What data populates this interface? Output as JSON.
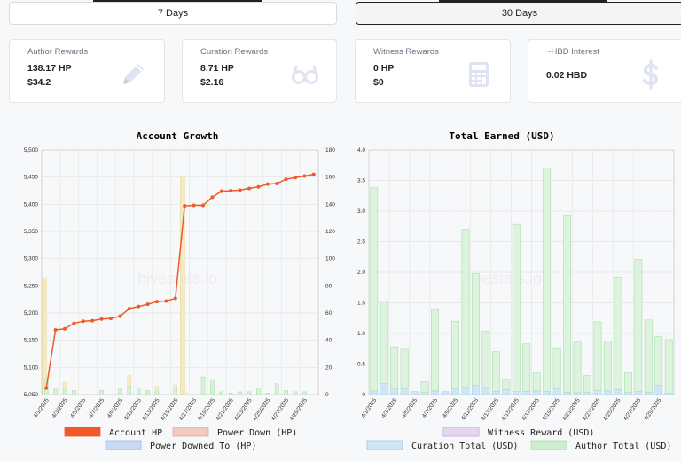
{
  "tabs": [
    {
      "label": "7 Days"
    },
    {
      "label": "30 Days"
    }
  ],
  "cards": [
    {
      "label": "Author Rewards",
      "value1": "138.17 HP",
      "value2": "$34.2",
      "icon": "pencil-icon"
    },
    {
      "label": "Curation Rewards",
      "value1": "8.71 HP",
      "value2": "$2.16",
      "icon": "glasses-icon"
    },
    {
      "label": "Witness Rewards",
      "value1": "0 HP",
      "value2": "$0",
      "icon": "calculator-icon"
    },
    {
      "label": "~HBD Interest",
      "value1": "0.02 HBD",
      "value2": "",
      "icon": "dollar-icon"
    }
  ],
  "watermark": "hivestats.io",
  "colors": {
    "account_hp": "#f05a28",
    "power_down": "#f3c9c0",
    "power_downed_to": "#c9d8f5",
    "witness": "#e6d6ee",
    "curation": "#cfe6f5",
    "author": "#cdeecf",
    "card_icon": "#dfe3f2"
  },
  "chart_data": [
    {
      "type": "bar",
      "title": "Account Growth",
      "categories": [
        "4/1/2025",
        "4/2/2025",
        "4/3/2025",
        "4/4/2025",
        "4/5/2025",
        "4/6/2025",
        "4/7/2025",
        "4/8/2025",
        "4/9/2025",
        "4/10/2025",
        "4/11/2025",
        "4/12/2025",
        "4/13/2025",
        "4/14/2025",
        "4/15/2025",
        "4/16/2025",
        "4/17/2025",
        "4/18/2025",
        "4/19/2025",
        "4/20/2025",
        "4/21/2025",
        "4/22/2025",
        "4/23/2025",
        "4/24/2025",
        "4/25/2025",
        "4/26/2025",
        "4/27/2025",
        "4/28/2025",
        "4/29/2025",
        "4/30/2025"
      ],
      "xtick_labels": [
        "4/1/2025",
        "4/3/2025",
        "4/5/2025",
        "4/7/2025",
        "4/9/2025",
        "4/11/2025",
        "4/13/2025",
        "4/15/2025",
        "4/17/2025",
        "4/19/2025",
        "4/21/2025",
        "4/23/2025",
        "4/25/2025",
        "4/27/2025",
        "4/29/2025"
      ],
      "y_left": {
        "min": 5050,
        "max": 5500,
        "ticks": [
          "5,050",
          "5,100",
          "5,150",
          "5,200",
          "5,250",
          "5,300",
          "5,350",
          "5,400",
          "5,450",
          "5,500"
        ]
      },
      "y_right": {
        "min": 0,
        "max": 180,
        "ticks": [
          "0",
          "20",
          "40",
          "60",
          "80",
          "100",
          "120",
          "140",
          "160",
          "180"
        ]
      },
      "series": [
        {
          "name": "Account HP",
          "kind": "line",
          "axis": "left",
          "values": [
            5062,
            5169,
            5171,
            5181,
            5185,
            5186,
            5189,
            5190,
            5194,
            5208,
            5212,
            5216,
            5221,
            5222,
            5227,
            5397,
            5398,
            5398,
            5413,
            5424,
            5425,
            5426,
            5429,
            5432,
            5437,
            5438,
            5446,
            5449,
            5452,
            5455
          ]
        },
        {
          "name": "Power Down (HP)",
          "kind": "bar",
          "axis": "right",
          "values": [
            86,
            0,
            0,
            0,
            0,
            0,
            0,
            0,
            0,
            0,
            0,
            0,
            0,
            0,
            0,
            161,
            0,
            0,
            0,
            0,
            0,
            0,
            0,
            0,
            0,
            0,
            0,
            0,
            0,
            0
          ]
        },
        {
          "name": "Power Downed To (HP)",
          "kind": "bar",
          "axis": "right",
          "values": [
            12,
            4,
            9,
            3,
            0,
            0,
            3,
            0,
            4,
            14,
            4,
            3,
            6,
            0,
            7,
            2,
            0,
            13,
            11,
            2,
            1,
            2,
            2,
            5,
            1,
            8,
            3,
            2,
            2,
            0
          ]
        },
        {
          "name": "",
          "kind": "bar",
          "axis": "right",
          "values": [
            12,
            4,
            4,
            3,
            0,
            0,
            3,
            0,
            4,
            6,
            4,
            3,
            2,
            0,
            5,
            0,
            0,
            13,
            11,
            2,
            1,
            2,
            2,
            5,
            1,
            8,
            3,
            2,
            2,
            0
          ]
        }
      ]
    },
    {
      "type": "bar",
      "title": "Total Earned (USD)",
      "categories": [
        "4/1/2025",
        "4/2/2025",
        "4/3/2025",
        "4/4/2025",
        "4/5/2025",
        "4/6/2025",
        "4/7/2025",
        "4/8/2025",
        "4/9/2025",
        "4/10/2025",
        "4/11/2025",
        "4/12/2025",
        "4/13/2025",
        "4/14/2025",
        "4/15/2025",
        "4/16/2025",
        "4/17/2025",
        "4/18/2025",
        "4/19/2025",
        "4/20/2025",
        "4/21/2025",
        "4/22/2025",
        "4/23/2025",
        "4/24/2025",
        "4/25/2025",
        "4/26/2025",
        "4/27/2025",
        "4/28/2025",
        "4/29/2025",
        "4/30/2025"
      ],
      "xtick_labels": [
        "4/1/2025",
        "4/3/2025",
        "4/5/2025",
        "4/7/2025",
        "4/9/2025",
        "4/11/2025",
        "4/13/2025",
        "4/15/2025",
        "4/17/2025",
        "4/19/2025",
        "4/21/2025",
        "4/23/2025",
        "4/25/2025",
        "4/27/2025",
        "4/29/2025"
      ],
      "ylim": [
        0,
        4.0
      ],
      "yticks": [
        "0",
        "0.5",
        "1.0",
        "1.5",
        "2.0",
        "2.5",
        "3.0",
        "3.5",
        "4.0"
      ],
      "series": [
        {
          "name": "Witness Reward (USD)",
          "values": [
            0,
            0,
            0,
            0,
            0,
            0,
            0,
            0,
            0,
            0,
            0,
            0,
            0,
            0,
            0,
            0,
            0,
            0,
            0,
            0,
            0,
            0,
            0,
            0,
            0,
            0,
            0,
            0,
            0,
            0
          ]
        },
        {
          "name": "Curation Total (USD)",
          "values": [
            0.06,
            0.18,
            0.1,
            0.1,
            0.05,
            0.04,
            0.06,
            0.05,
            0.1,
            0.12,
            0.15,
            0.12,
            0.05,
            0.08,
            0.05,
            0.05,
            0.06,
            0.05,
            0.1,
            0.04,
            0.03,
            0.04,
            0.07,
            0.06,
            0.08,
            0.04,
            0.05,
            0.04,
            0.15,
            0.02
          ]
        },
        {
          "name": "Author Total (USD)",
          "values": [
            3.32,
            1.35,
            0.68,
            0.64,
            0,
            0.17,
            1.33,
            0,
            1.1,
            2.58,
            1.83,
            0.92,
            0.65,
            0.17,
            2.73,
            0.78,
            0.3,
            3.65,
            0.65,
            2.88,
            0.83,
            0.27,
            1.12,
            0.82,
            1.84,
            0.32,
            2.16,
            1.18,
            0.8,
            0.88
          ]
        }
      ]
    }
  ]
}
